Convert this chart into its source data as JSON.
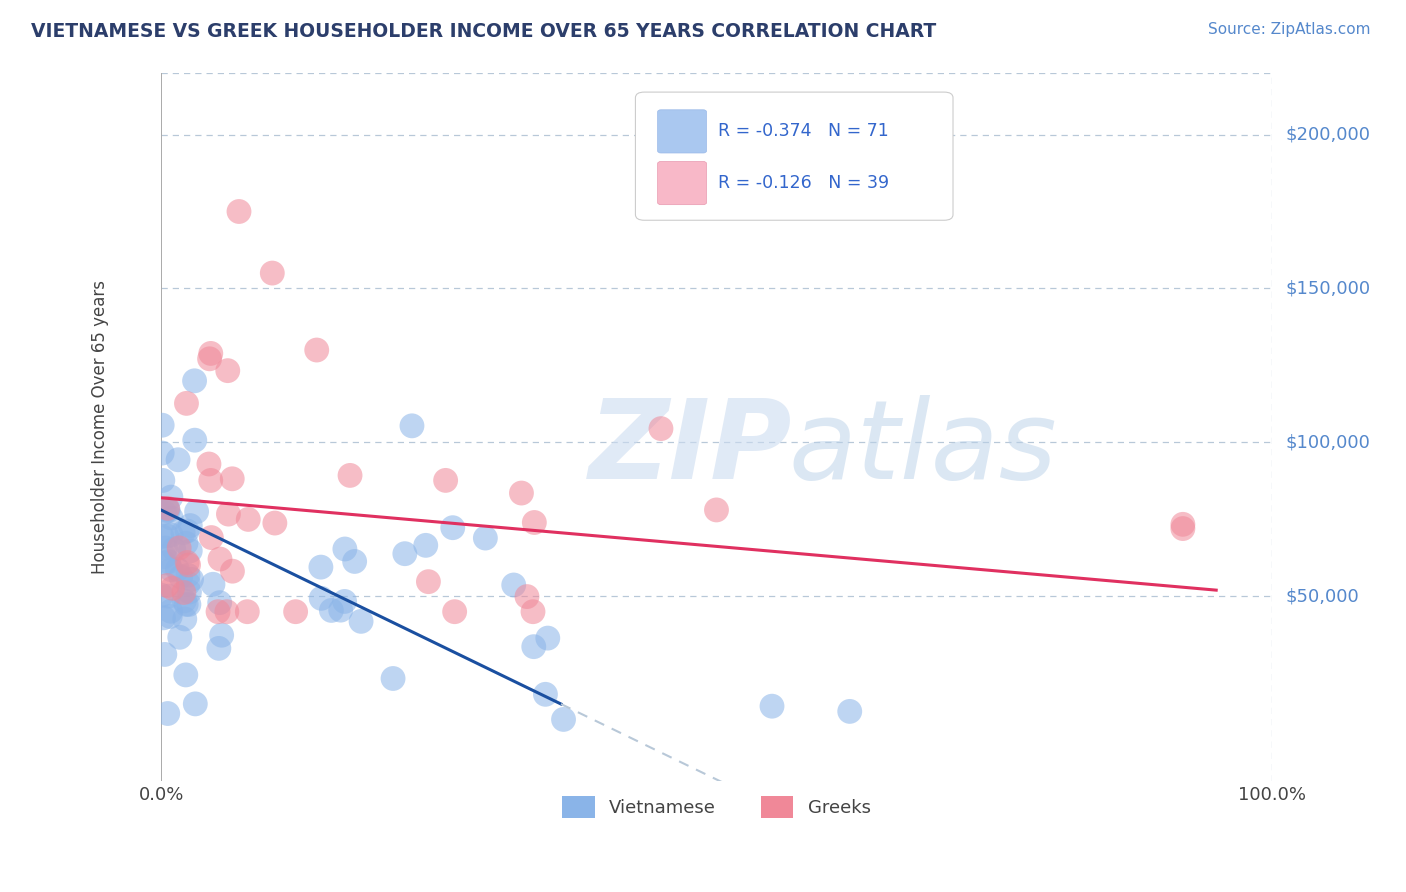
{
  "title": "VIETNAMESE VS GREEK HOUSEHOLDER INCOME OVER 65 YEARS CORRELATION CHART",
  "source": "Source: ZipAtlas.com",
  "ylabel": "Householder Income Over 65 years",
  "xlim": [
    0.0,
    1.0
  ],
  "ylim": [
    -10000,
    220000
  ],
  "xtick_labels": [
    "0.0%",
    "100.0%"
  ],
  "ytick_values": [
    50000,
    100000,
    150000,
    200000
  ],
  "ytick_labels": [
    "$50,000",
    "$100,000",
    "$150,000",
    "$200,000"
  ],
  "viet_color": "#8ab4e8",
  "greek_color": "#f08898",
  "viet_line_color": "#1a4fa0",
  "greek_line_color": "#e03060",
  "viet_legend_color": "#aac8f0",
  "greek_legend_color": "#f8b8c8",
  "grid_color": "#b8c8d8",
  "background_color": "#ffffff",
  "title_color": "#2c3e6b",
  "source_color": "#5588cc",
  "text_color": "#444444",
  "watermark_zip_color": "#ccdcec",
  "watermark_atlas_color": "#b8d0e8",
  "legend_R_color": "#3366cc",
  "legend_N_color": "#3366cc"
}
